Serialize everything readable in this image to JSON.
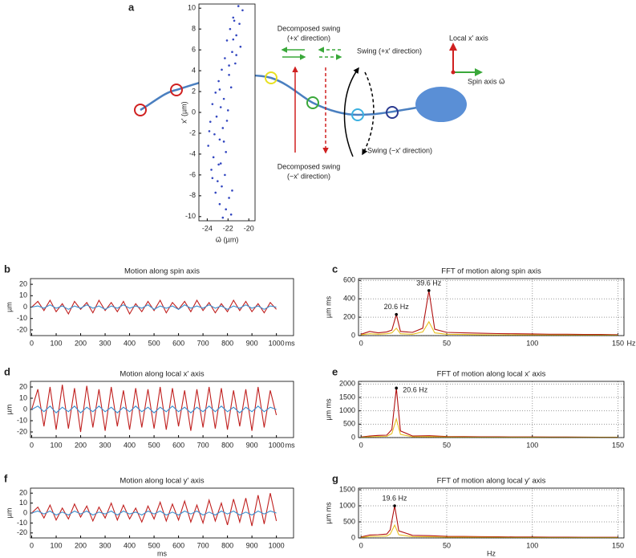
{
  "diagram": {
    "panel": "a",
    "decomposed_plus": [
      "Decomposed swing",
      "(+x′ direction)"
    ],
    "swing_plus": "Swing (+x′ direction)",
    "local_axis": "Local x′ axis",
    "spin_axis": "Spin axis ω⃗",
    "decomposed_minus": [
      "Decomposed swing",
      "(−x′ direction)"
    ],
    "swing_minus": "Swing (−x′ direction)"
  },
  "chart_data": [
    {
      "type": "scatter",
      "y_label": "x′ (µm)",
      "x_label": "ω⃗ (µm)",
      "xlim": [
        -24.8,
        -19.4
      ],
      "ylim": [
        -10.4,
        10.4
      ],
      "xticks": [
        -24,
        -22,
        -20
      ],
      "yticks": [
        -10,
        -8,
        -6,
        -4,
        -2,
        0,
        2,
        4,
        6,
        8,
        10
      ],
      "grid": false,
      "x": [
        -21.0,
        -20.6,
        -21.5,
        -20.9,
        -21.8,
        -21.2,
        -22.1,
        -20.8,
        -21.6,
        -22.3,
        -21.3,
        -22.6,
        -21.9,
        -22.9,
        -21.7,
        -23.2,
        -22.4,
        -23.5,
        -22.0,
        -23.1,
        -23.7,
        -22.5,
        -23.3,
        -22.8,
        -23.9,
        -22.2,
        -23.4,
        -22.7,
        -23.6,
        -22.3,
        -23.0,
        -22.6,
        -23.2,
        -21.9,
        -22.8,
        -22.2,
        -21.7,
        -22.5,
        -21.5,
        -21.9,
        -22.8,
        -23.8,
        -22.9,
        -21.6,
        -22.4,
        -22.7,
        -21.4,
        -23.5,
        -22.1,
        -21.2
      ],
      "series": [
        {
          "color": "#3347c0",
          "values": [
            10.2,
            9.8,
            9.1,
            8.5,
            8.0,
            7.4,
            6.9,
            6.3,
            5.8,
            5.2,
            4.7,
            4.1,
            3.6,
            3.0,
            2.4,
            1.9,
            1.3,
            0.8,
            0.2,
            -0.4,
            -0.9,
            -1.5,
            -2.1,
            -2.6,
            -3.2,
            -3.8,
            -4.3,
            -4.9,
            -5.5,
            -6.0,
            -6.6,
            -7.1,
            -7.7,
            -8.2,
            -8.8,
            -9.3,
            -9.8,
            -10.1,
            7.0,
            4.5,
            2.2,
            -1.8,
            -5.0,
            -7.5,
            -2.8,
            0.5,
            8.8,
            -6.3,
            -0.8,
            5.5
          ]
        }
      ]
    },
    {
      "type": "line",
      "panel": "b",
      "title": "Motion along spin axis",
      "y_label": "µm",
      "x_unit": "ms",
      "xlim": [
        -5,
        1070
      ],
      "ylim": [
        -25,
        25
      ],
      "xticks": [
        0,
        100,
        200,
        300,
        400,
        500,
        600,
        700,
        800,
        900,
        1000
      ],
      "yticks": [
        -20,
        -10,
        0,
        10,
        20
      ],
      "grid": false,
      "x": [
        0,
        25,
        50,
        75,
        100,
        125,
        150,
        175,
        200,
        225,
        250,
        275,
        300,
        325,
        350,
        375,
        400,
        425,
        450,
        475,
        500,
        525,
        550,
        575,
        600,
        625,
        650,
        675,
        700,
        725,
        750,
        775,
        800,
        825,
        850,
        875,
        900,
        925,
        950,
        975,
        1000
      ],
      "series": [
        {
          "color": "#c0201f",
          "values": [
            0,
            5,
            -3,
            6,
            -4,
            3,
            -6,
            5,
            -2,
            4,
            -5,
            6,
            -3,
            4,
            -4,
            5,
            -6,
            3,
            -4,
            5,
            -3,
            6,
            -5,
            4,
            -2,
            5,
            -4,
            6,
            -3,
            4,
            -5,
            3,
            -4,
            6,
            -3,
            5,
            -4,
            3,
            -5,
            4,
            -2
          ]
        },
        {
          "color": "#3a8fd0",
          "values": [
            0,
            1,
            -1,
            2,
            -1,
            1,
            -2,
            1,
            -1,
            2,
            -1,
            1,
            -2,
            1,
            -1,
            2,
            -1,
            1,
            -1,
            2,
            -2,
            1,
            -1,
            1,
            -2,
            2,
            -1,
            1,
            -1,
            2,
            -1,
            1,
            -2,
            1,
            -1,
            2,
            -1,
            1,
            -2,
            1,
            0
          ]
        }
      ]
    },
    {
      "type": "line",
      "panel": "c",
      "title": "FFT of motion along spin axis",
      "y_label": "µm ms",
      "x_unit": "Hz",
      "xlim": [
        -1.5,
        153.5
      ],
      "ylim": [
        0,
        620
      ],
      "xticks": [
        0,
        50,
        100,
        150
      ],
      "yticks": [
        0,
        200,
        400,
        600
      ],
      "grid": true,
      "x": [
        0,
        5,
        10,
        15,
        18,
        20.6,
        23,
        30,
        36,
        39.6,
        43,
        50,
        60,
        70,
        80,
        90,
        100,
        110,
        120,
        130,
        140,
        150
      ],
      "series": [
        {
          "color": "#b01010",
          "values": [
            15,
            45,
            30,
            40,
            60,
            230,
            45,
            35,
            80,
            490,
            70,
            35,
            30,
            25,
            22,
            20,
            18,
            15,
            15,
            12,
            12,
            10
          ]
        },
        {
          "color": "#e8c020",
          "values": [
            8,
            20,
            15,
            20,
            30,
            80,
            20,
            15,
            40,
            150,
            30,
            15,
            12,
            10,
            9,
            8,
            7,
            6,
            6,
            5,
            5,
            4
          ]
        }
      ],
      "annotations": [
        {
          "text": "20.6 Hz",
          "x": 20.6
        },
        {
          "text": "39.6 Hz",
          "x": 39.6
        }
      ]
    },
    {
      "type": "line",
      "panel": "d",
      "title": "Motion along local x′ axis",
      "y_label": "µm",
      "x_unit": "ms",
      "xlim": [
        -5,
        1070
      ],
      "ylim": [
        -25,
        25
      ],
      "xticks": [
        0,
        100,
        200,
        300,
        400,
        500,
        600,
        700,
        800,
        900,
        1000
      ],
      "yticks": [
        -20,
        -10,
        0,
        10,
        20
      ],
      "grid": false,
      "x": [
        0,
        25,
        50,
        75,
        100,
        125,
        150,
        175,
        200,
        225,
        250,
        275,
        300,
        325,
        350,
        375,
        400,
        425,
        450,
        475,
        500,
        525,
        550,
        575,
        600,
        625,
        650,
        675,
        700,
        725,
        750,
        775,
        800,
        825,
        850,
        875,
        900,
        925,
        950,
        975,
        1000
      ],
      "series": [
        {
          "color": "#c0201f",
          "values": [
            0,
            18,
            -15,
            20,
            -18,
            22,
            -17,
            19,
            -20,
            21,
            -16,
            18,
            -19,
            20,
            -15,
            17,
            -18,
            19,
            -16,
            18,
            -17,
            20,
            -18,
            19,
            -15,
            17,
            -19,
            18,
            -16,
            20,
            -17,
            19,
            -18,
            17,
            -15,
            18,
            -19,
            20,
            -16,
            17,
            -5
          ]
        },
        {
          "color": "#3a8fd0",
          "values": [
            0,
            3,
            -2,
            3,
            -3,
            2,
            -2,
            3,
            -3,
            2,
            -2,
            3,
            -2,
            2,
            -3,
            2,
            -2,
            3,
            -2,
            2,
            -3,
            2,
            -2,
            3,
            -2,
            2,
            -3,
            2,
            -2,
            3,
            -2,
            3,
            -2,
            2,
            -3,
            2,
            -2,
            3,
            -2,
            2,
            0
          ]
        }
      ]
    },
    {
      "type": "line",
      "panel": "e",
      "title": "FFT of motion along local x′ axis",
      "y_label": "µm ms",
      "xlim": [
        -1.5,
        153.5
      ],
      "ylim": [
        0,
        2100
      ],
      "xticks": [
        0,
        50,
        100,
        150
      ],
      "yticks": [
        0,
        500,
        1000,
        1500,
        2000
      ],
      "grid": true,
      "x": [
        0,
        5,
        10,
        15,
        18,
        20.6,
        23,
        30,
        40,
        50,
        60,
        70,
        80,
        90,
        100,
        110,
        120,
        130,
        140,
        150
      ],
      "series": [
        {
          "color": "#b01010",
          "values": [
            20,
            60,
            80,
            90,
            300,
            1850,
            250,
            60,
            70,
            40,
            35,
            30,
            30,
            25,
            25,
            20,
            20,
            18,
            15,
            15
          ]
        },
        {
          "color": "#e8c020",
          "values": [
            10,
            30,
            40,
            45,
            150,
            700,
            120,
            30,
            35,
            20,
            18,
            15,
            15,
            12,
            12,
            10,
            10,
            9,
            8,
            8
          ]
        }
      ],
      "annotations": [
        {
          "text": "20.6 Hz",
          "x": 20.6
        }
      ]
    },
    {
      "type": "line",
      "panel": "f",
      "title": "Motion along local y′ axis",
      "y_label": "µm",
      "x_label": "ms",
      "xlim": [
        -5,
        1070
      ],
      "ylim": [
        -25,
        25
      ],
      "xticks": [
        0,
        100,
        200,
        300,
        400,
        500,
        600,
        700,
        800,
        900,
        1000
      ],
      "yticks": [
        -20,
        -10,
        0,
        10,
        20
      ],
      "grid": false,
      "x": [
        0,
        25,
        50,
        75,
        100,
        125,
        150,
        175,
        200,
        225,
        250,
        275,
        300,
        325,
        350,
        375,
        400,
        425,
        450,
        475,
        500,
        525,
        550,
        575,
        600,
        625,
        650,
        675,
        700,
        725,
        750,
        775,
        800,
        825,
        850,
        875,
        900,
        925,
        950,
        975,
        1000
      ],
      "series": [
        {
          "color": "#c0201f",
          "values": [
            0,
            6,
            -5,
            8,
            -7,
            5,
            -6,
            9,
            -4,
            7,
            -8,
            6,
            -5,
            10,
            -7,
            8,
            -6,
            5,
            -9,
            7,
            -6,
            11,
            -8,
            9,
            -7,
            12,
            -9,
            8,
            -10,
            13,
            -8,
            10,
            -12,
            14,
            -9,
            15,
            -13,
            18,
            -11,
            20,
            -8
          ]
        },
        {
          "color": "#3a8fd0",
          "values": [
            0,
            2,
            -1,
            2,
            -2,
            1,
            -2,
            2,
            -1,
            2,
            -2,
            1,
            -1,
            2,
            -2,
            2,
            -1,
            1,
            -2,
            2,
            -1,
            2,
            -2,
            1,
            -2,
            2,
            -1,
            2,
            -2,
            1,
            -2,
            2,
            -1,
            2,
            -2,
            1,
            -2,
            2,
            -1,
            2,
            0
          ]
        }
      ]
    },
    {
      "type": "line",
      "panel": "g",
      "title": "FFT of motion along local y′ axis",
      "y_label": "µm ms",
      "x_label": "Hz",
      "xlim": [
        -1.5,
        153.5
      ],
      "ylim": [
        0,
        1550
      ],
      "xticks": [
        0,
        50,
        100,
        150
      ],
      "yticks": [
        0,
        500,
        1000,
        1500
      ],
      "grid": true,
      "x": [
        0,
        5,
        10,
        15,
        17,
        19.6,
        22,
        30,
        40,
        50,
        60,
        70,
        80,
        90,
        100,
        110,
        120,
        130,
        140,
        150
      ],
      "series": [
        {
          "color": "#b01010",
          "values": [
            30,
            90,
            100,
            120,
            250,
            1000,
            220,
            80,
            70,
            50,
            45,
            40,
            35,
            30,
            30,
            25,
            25,
            20,
            20,
            20
          ]
        },
        {
          "color": "#e8c020",
          "values": [
            15,
            45,
            50,
            60,
            120,
            400,
            100,
            40,
            35,
            25,
            22,
            20,
            18,
            15,
            15,
            12,
            12,
            10,
            10,
            10
          ]
        }
      ],
      "annotations": [
        {
          "text": "19.6 Hz",
          "x": 19.6
        }
      ]
    }
  ]
}
